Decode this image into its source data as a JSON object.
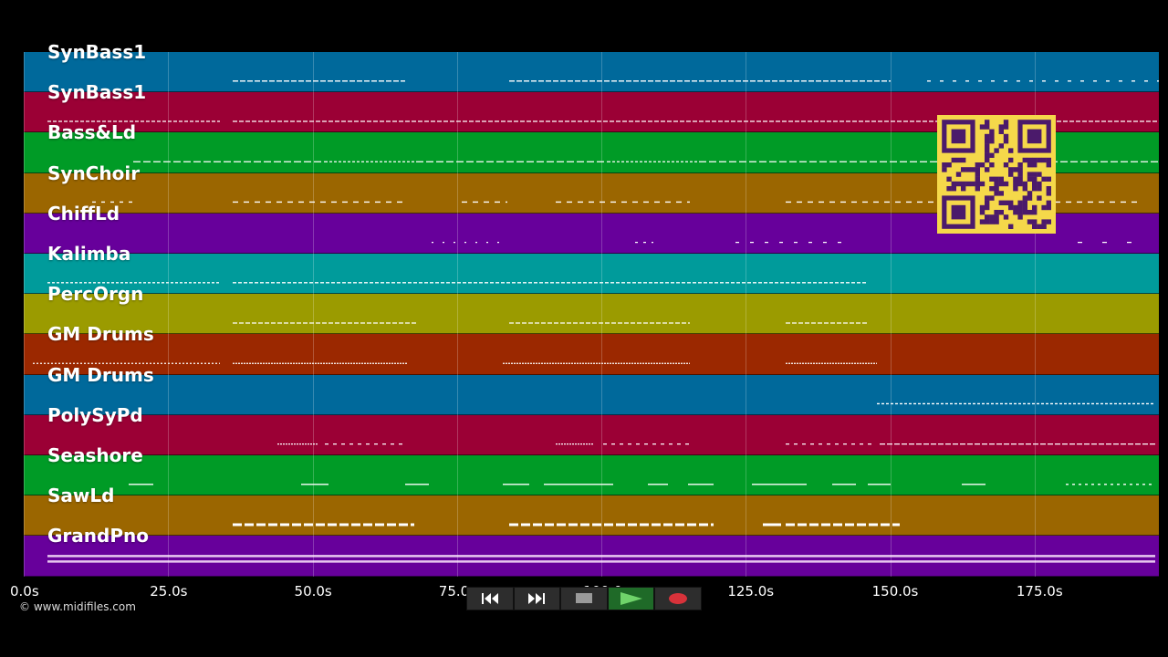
{
  "tracks": [
    {
      "name": "SynBass1",
      "color": "#00699b"
    },
    {
      "name": "SynBass1",
      "color": "#9b0035"
    },
    {
      "name": "Bass&Ld",
      "color": "#009b26"
    },
    {
      "name": "SynChoir",
      "color": "#9b6600"
    },
    {
      "name": "ChiffLd",
      "color": "#67009b"
    },
    {
      "name": "Kalimba",
      "color": "#009b9b"
    },
    {
      "name": "PercOrgn",
      "color": "#9b9b00"
    },
    {
      "name": "GM Drums",
      "color": "#9b2800"
    },
    {
      "name": "GM Drums",
      "color": "#00699b"
    },
    {
      "name": "PolySyPd",
      "color": "#9b0035"
    },
    {
      "name": "Seashore",
      "color": "#009b26"
    },
    {
      "name": "SawLd",
      "color": "#9b6600"
    },
    {
      "name": "GrandPno",
      "color": "#67009b"
    }
  ],
  "timeline": {
    "ticks": [
      "0.0s",
      "25.0s",
      "50.0s",
      "75.0s",
      "100.0s",
      "125.0s",
      "150.0s",
      "175.0s"
    ],
    "tick_values": [
      0,
      25,
      50,
      75,
      100,
      125,
      150,
      175
    ],
    "max_seconds": 196.5
  },
  "transport": {
    "buttons": [
      {
        "id": "rewind",
        "icon": "rewind-icon"
      },
      {
        "id": "fast-forward",
        "icon": "fast-forward-icon"
      },
      {
        "id": "stop",
        "icon": "stop-icon"
      },
      {
        "id": "play",
        "icon": "play-icon"
      },
      {
        "id": "record",
        "icon": "record-icon"
      }
    ]
  },
  "copyright": "© www.midifiles.com",
  "qr_code": {
    "icon": "qr-code-icon",
    "fg_color": "#4b1a6b",
    "bg_color": "#f5d84a"
  }
}
